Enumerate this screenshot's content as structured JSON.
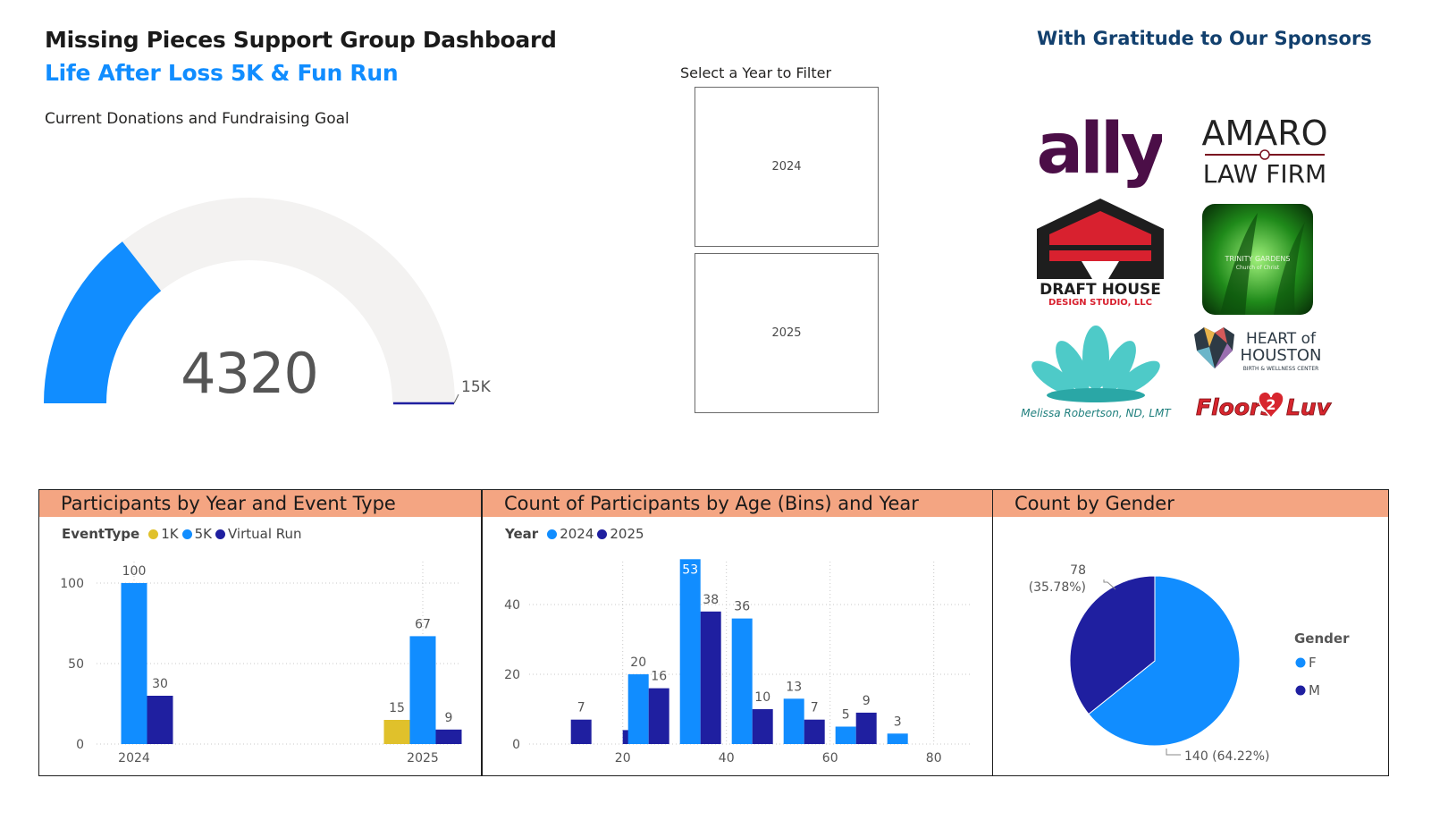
{
  "header": {
    "title": "Missing Pieces Support Group Dashboard",
    "subtitle": "Life After Loss 5K & Fun Run"
  },
  "gauge": {
    "title": "Current Donations and Fundraising Goal",
    "value": 4320,
    "value_label": "4320",
    "max": 15000,
    "max_label": "15K",
    "fill_color": "#118dff",
    "track_color": "#f3f2f1",
    "target_color": "#1f1fa0"
  },
  "slicer": {
    "title": "Select a Year to Filter",
    "options": [
      "2024",
      "2025"
    ]
  },
  "sponsors": {
    "title": "With Gratitude to Our Sponsors",
    "logos": [
      {
        "name": "ally",
        "text": "ally"
      },
      {
        "name": "amaro-law-firm",
        "text": "AMARO",
        "text2": "LAW FIRM"
      },
      {
        "name": "draft-house",
        "text": "DRAFT HOUSE",
        "text2": "DESIGN STUDIO, LLC"
      },
      {
        "name": "trinity-gardens",
        "text": "TRINITY GARDENS",
        "text2": "Church of Christ"
      },
      {
        "name": "melissa-robertson",
        "text": "Melissa Robertson, ND, LMT"
      },
      {
        "name": "heart-of-houston",
        "text": "HEART of",
        "text2": "HOUSTON",
        "text3": "BIRTH & WELLNESS CENTER"
      },
      {
        "name": "floors2luv",
        "text": "Floors",
        "text2": "2",
        "text3": "Luv"
      }
    ]
  },
  "chart_data": [
    {
      "type": "bar",
      "title": "Participants by Year and Event Type",
      "legend_title": "EventType",
      "legend_placement": "top-left",
      "categories": [
        "2024",
        "2025"
      ],
      "series": [
        {
          "name": "1K",
          "color": "#e0c12b",
          "values": [
            null,
            15
          ]
        },
        {
          "name": "5K",
          "color": "#118dff",
          "values": [
            100,
            67
          ]
        },
        {
          "name": "Virtual Run",
          "color": "#1f1fa0",
          "values": [
            30,
            9
          ]
        }
      ],
      "yticks": [
        "0",
        "50",
        "100"
      ],
      "ylim": [
        0,
        110
      ],
      "grid": true
    },
    {
      "type": "bar",
      "title": "Count of Participants by Age (Bins) and Year",
      "legend_title": "Year",
      "legend_placement": "top-left",
      "bins": [
        5,
        15,
        20,
        30,
        40,
        50,
        60,
        70
      ],
      "bin_width": 10,
      "series": [
        {
          "name": "2024",
          "color": "#118dff",
          "values": [
            null,
            null,
            20,
            53,
            36,
            13,
            5,
            3
          ]
        },
        {
          "name": "2025",
          "color": "#1f1fa0",
          "values": [
            7,
            4,
            16,
            38,
            10,
            7,
            9,
            null
          ]
        }
      ],
      "xticks": [
        "20",
        "40",
        "60",
        "80"
      ],
      "yticks": [
        "0",
        "20",
        "40"
      ],
      "xlim": [
        0,
        80
      ],
      "ylim": [
        0,
        55
      ],
      "grid": true
    },
    {
      "type": "pie",
      "title": "Count by Gender",
      "legend_title": "Gender",
      "legend_placement": "right",
      "slices": [
        {
          "name": "F",
          "value": 140,
          "label": "140 (64.22%)",
          "color": "#118dff"
        },
        {
          "name": "M",
          "value": 78,
          "label": "78",
          "label2": "(35.78%)",
          "color": "#1f1fa0"
        }
      ]
    }
  ]
}
